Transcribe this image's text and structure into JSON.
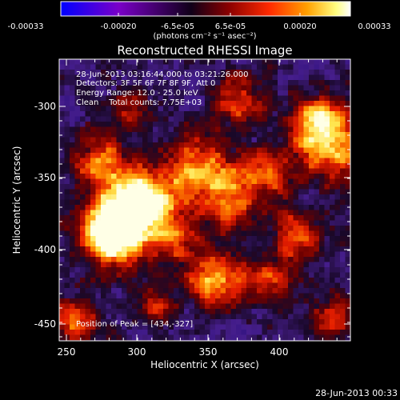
{
  "colorbar": {
    "tick_labels": [
      "-0.00033",
      "-0.00020",
      "-6.5e-05",
      "6.5e-05",
      "0.00020",
      "0.00033"
    ],
    "unit_label": "(photons cm⁻² s⁻¹ asec⁻²)",
    "range": [
      -0.00033,
      0.00033
    ],
    "colormap": [
      "#0000ff",
      "#7a00c8",
      "#100018",
      "#8a0000",
      "#ff2a00",
      "#ffa000",
      "#ffff80",
      "#ffffff"
    ]
  },
  "plot": {
    "title": "Reconstructed RHESSI Image",
    "xlabel": "Heliocentric X (arcsec)",
    "ylabel": "Heliocentric Y (arcsec)",
    "x_ticks": [
      "250",
      "300",
      "350",
      "400"
    ],
    "y_ticks": [
      "-300",
      "-350",
      "-400",
      "-450"
    ],
    "xlim": [
      248,
      438
    ],
    "ylim": [
      -456,
      -278
    ]
  },
  "annotations": {
    "time_range": "28-Jun-2013 03:16:44.000 to 03:21:26.000",
    "detectors": "Detectors: 3F 5F 6F 7F 8F 9F, Att 0",
    "energy": "Energy Range: 12.0 - 25.0 keV",
    "clean": "Clean    Total counts: 7.75E+03",
    "peak": "Position of Peak = [434,-327]"
  },
  "footer": {
    "timestamp": "28-Jun-2013 00:33"
  }
}
